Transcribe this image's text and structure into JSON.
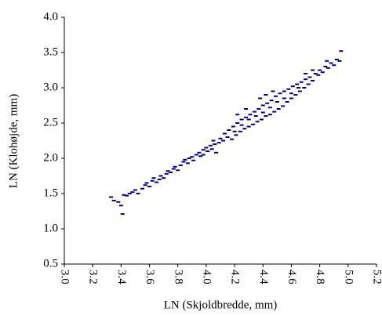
{
  "chart_data": {
    "type": "scatter",
    "x_label": "LN (Skjoldbredde, mm)",
    "y_label": "LN (Klohøjde, mm)",
    "xlim": [
      3.0,
      5.2
    ],
    "xticks": [
      {
        "value": 3,
        "label": "3.0"
      },
      3.2,
      3.4,
      3.6,
      3.8,
      {
        "value": 4,
        "label": "4.0"
      },
      4.2,
      4.4,
      4.6,
      4.8,
      {
        "value": 5,
        "label": "5.0"
      },
      5.2
    ],
    "ylim": [
      0.5,
      4.0
    ],
    "yticks": [
      0.5,
      {
        "value": 1,
        "label": "1.0"
      },
      1.5,
      {
        "value": 2,
        "label": "2.0"
      },
      2.5,
      {
        "value": 3,
        "label": "3.0"
      },
      3.5,
      {
        "value": 4,
        "label": "4.0"
      }
    ],
    "x": [
      3.33,
      3.35,
      3.38,
      3.4,
      3.41,
      3.42,
      3.44,
      3.46,
      3.48,
      3.5,
      3.52,
      3.55,
      3.57,
      3.58,
      3.6,
      3.62,
      3.63,
      3.65,
      3.67,
      3.68,
      3.7,
      3.72,
      3.73,
      3.75,
      3.77,
      3.78,
      3.8,
      3.82,
      3.84,
      3.85,
      3.87,
      3.88,
      3.9,
      3.91,
      3.93,
      3.95,
      3.96,
      3.98,
      4.0,
      4.01,
      4.03,
      4.04,
      4.06,
      4.07,
      4.09,
      4.1,
      4.12,
      4.13,
      4.15,
      4.16,
      4.18,
      4.19,
      4.21,
      4.22,
      4.24,
      4.25,
      4.27,
      4.28,
      4.3,
      4.31,
      4.33,
      4.34,
      4.36,
      4.37,
      4.39,
      4.4,
      4.42,
      4.43,
      4.45,
      4.46,
      4.48,
      4.49,
      4.51,
      4.52,
      4.54,
      4.55,
      4.57,
      4.58,
      4.6,
      4.61,
      4.63,
      4.64,
      4.66,
      4.67,
      4.69,
      4.7,
      4.72,
      4.73,
      4.75,
      4.77,
      4.79,
      4.8,
      4.82,
      4.84,
      4.86,
      4.88,
      4.9,
      4.92,
      4.94,
      4.95,
      4.35,
      4.4,
      4.45,
      4.5,
      4.25,
      4.2,
      4.3,
      4.55,
      4.6,
      4.65,
      4.38,
      4.42,
      4.47,
      4.28,
      4.22,
      4.7,
      4.75,
      4.85,
      3.98,
      4.05
    ],
    "series": [
      {
        "color": "#000080",
        "values": [
          1.45,
          1.4,
          1.38,
          1.33,
          1.21,
          1.48,
          1.47,
          1.5,
          1.52,
          1.55,
          1.5,
          1.57,
          1.62,
          1.65,
          1.6,
          1.68,
          1.72,
          1.66,
          1.7,
          1.75,
          1.72,
          1.78,
          1.82,
          1.8,
          1.85,
          1.88,
          1.83,
          1.9,
          1.95,
          1.98,
          1.93,
          2.0,
          2.02,
          1.97,
          2.05,
          2.08,
          2.03,
          2.12,
          2.15,
          2.1,
          2.18,
          2.13,
          2.2,
          2.08,
          2.22,
          2.28,
          2.25,
          2.35,
          2.3,
          2.4,
          2.27,
          2.45,
          2.33,
          2.5,
          2.38,
          2.55,
          2.42,
          2.58,
          2.45,
          2.62,
          2.48,
          2.66,
          2.52,
          2.7,
          2.55,
          2.75,
          2.6,
          2.78,
          2.62,
          2.82,
          2.66,
          2.88,
          2.7,
          2.92,
          2.74,
          2.95,
          2.8,
          2.98,
          2.85,
          3.02,
          2.9,
          3.05,
          2.95,
          3.08,
          3.0,
          3.12,
          3.05,
          3.15,
          3.1,
          3.2,
          3.18,
          3.25,
          3.22,
          3.3,
          3.28,
          3.35,
          3.32,
          3.4,
          3.38,
          3.52,
          2.6,
          2.65,
          2.72,
          2.8,
          2.47,
          2.38,
          2.55,
          2.85,
          2.92,
          3.0,
          2.85,
          2.9,
          2.95,
          2.7,
          2.62,
          3.2,
          3.25,
          3.38,
          2.05,
          2.25
        ]
      }
    ]
  }
}
